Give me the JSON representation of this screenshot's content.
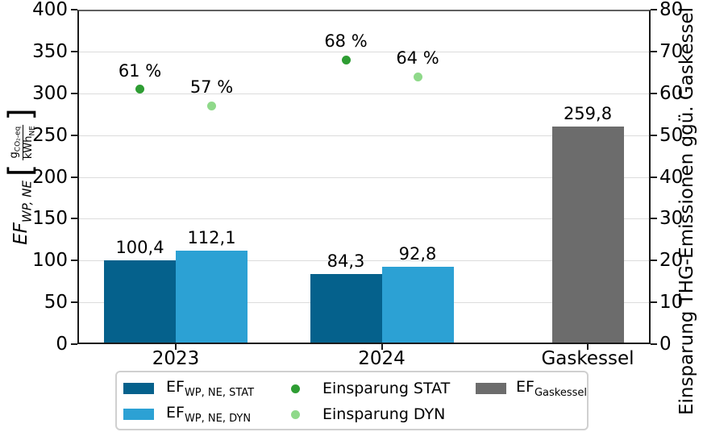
{
  "chart_data": {
    "type": "bar+scatter",
    "categories": [
      "2023",
      "2024",
      "Gaskessel"
    ],
    "left_axis": {
      "label_ef": "EF",
      "label_ef_sub": "WP, NE",
      "unit_num_base": "g",
      "unit_num_sub": "CO₂-eq",
      "unit_den_base": "kWh",
      "unit_den_sub": "NE",
      "min": 0,
      "max": 400,
      "step": 50,
      "ticks": [
        "0",
        "50",
        "100",
        "150",
        "200",
        "250",
        "300",
        "350",
        "400"
      ]
    },
    "right_axis": {
      "label": "Einsparung THG-Emissionen ggü. Gaskessel",
      "min": 0,
      "max": 80,
      "step": 10,
      "ticks": [
        "0",
        "10",
        "20",
        "30",
        "40",
        "50",
        "60",
        "70",
        "80"
      ]
    },
    "bar_series": [
      {
        "name": "EF WP,NE,STAT",
        "slug": "ef-wp-ne-stat",
        "color": "#05618c",
        "values": [
          100.4,
          84.3,
          null
        ],
        "value_labels": [
          "100,4",
          "84,3",
          null
        ]
      },
      {
        "name": "EF WP,NE,DYN",
        "slug": "ef-wp-ne-dyn",
        "color": "#2ca1d4",
        "values": [
          112.1,
          92.8,
          null
        ],
        "value_labels": [
          "112,1",
          "92,8",
          null
        ]
      },
      {
        "name": "EF Gaskessel",
        "slug": "ef-gaskessel",
        "color": "#6c6c6c",
        "values": [
          null,
          null,
          259.8
        ],
        "value_labels": [
          null,
          null,
          "259,8"
        ]
      }
    ],
    "scatter_series": [
      {
        "name": "Einsparung STAT",
        "slug": "einsparung-stat",
        "color": "#2e9d33",
        "values": [
          61,
          68,
          null
        ],
        "value_labels": [
          "61 %",
          "68 %",
          null
        ]
      },
      {
        "name": "Einsparung DYN",
        "slug": "einsparung-dyn",
        "color": "#8fd98a",
        "values": [
          57,
          64,
          null
        ],
        "value_labels": [
          "57 %",
          "64 %",
          null
        ]
      }
    ],
    "grid": true,
    "legend_position": "bottom"
  },
  "legend": {
    "items": [
      {
        "type": "swatch",
        "color": "#05618c",
        "base": "EF",
        "sub": "WP, NE, STAT"
      },
      {
        "type": "swatch",
        "color": "#2ca1d4",
        "base": "EF",
        "sub": "WP, NE, DYN"
      },
      {
        "type": "dot",
        "color": "#2e9d33",
        "label": "Einsparung STAT"
      },
      {
        "type": "dot",
        "color": "#8fd98a",
        "label": "Einsparung DYN"
      },
      {
        "type": "swatch",
        "color": "#6c6c6c",
        "base": "EF",
        "sub": "Gaskessel"
      }
    ]
  }
}
